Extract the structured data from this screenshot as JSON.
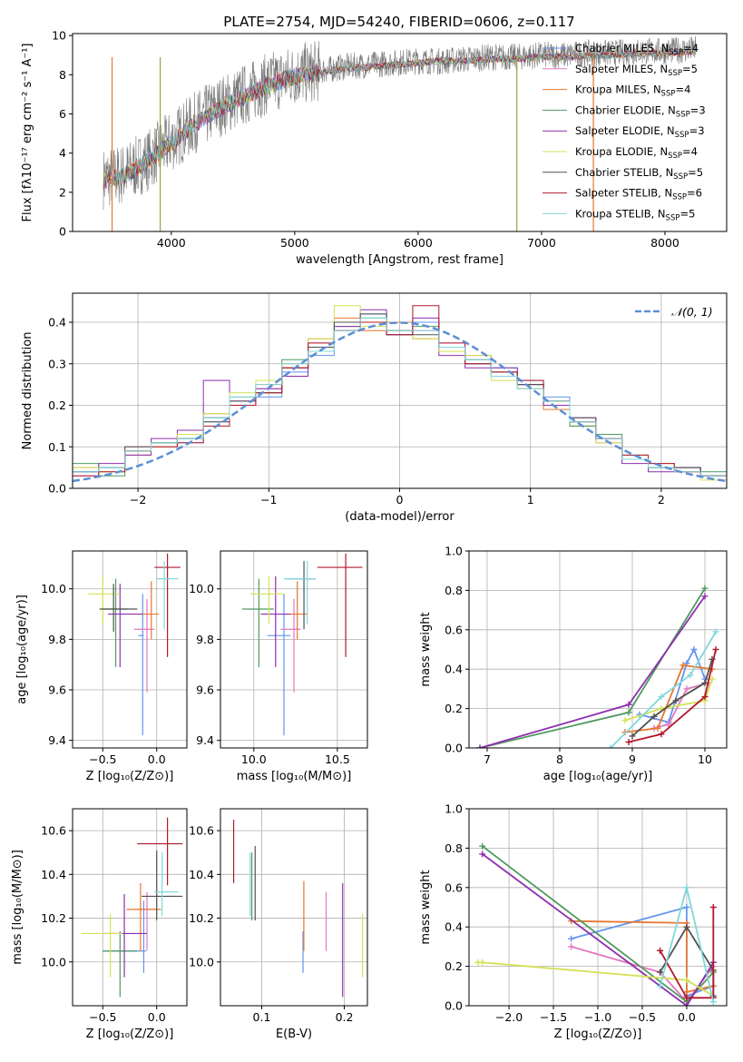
{
  "figure_title": "PLATE=2754, MJD=54240, FIBERID=0606, z=0.117",
  "models": [
    {
      "label": "Chabrier MILES, N",
      "sub": "SSP",
      "tail": "=4",
      "color": "#6495ed"
    },
    {
      "label": "Salpeter MILES, N",
      "sub": "SSP",
      "tail": "=5",
      "color": "#e377c2"
    },
    {
      "label": "Kroupa MILES, N",
      "sub": "SSP",
      "tail": "=4",
      "color": "#e8772e"
    },
    {
      "label": "Chabrier ELODIE, N",
      "sub": "SSP",
      "tail": "=3",
      "color": "#4f9a5f"
    },
    {
      "label": "Salpeter ELODIE, N",
      "sub": "SSP",
      "tail": "=3",
      "color": "#8e2fb0"
    },
    {
      "label": "Kroupa ELODIE, N",
      "sub": "SSP",
      "tail": "=4",
      "color": "#d4e157"
    },
    {
      "label": "Chabrier STELIB, N",
      "sub": "SSP",
      "tail": "=5",
      "color": "#505050"
    },
    {
      "label": "Salpeter STELIB, N",
      "sub": "SSP",
      "tail": "=6",
      "color": "#b2182b"
    },
    {
      "label": "Kroupa STELIB, N",
      "sub": "SSP",
      "tail": "=5",
      "color": "#7fd8dc"
    }
  ],
  "chart_data": [
    {
      "id": "spectrum",
      "type": "line",
      "xlabel": "wavelength [Angstrom, rest frame]",
      "ylabel": "Flux [fλ10⁻¹⁷ erg cm⁻² s⁻¹ A⁻¹]",
      "xlim": [
        3200,
        8500
      ],
      "ylim": [
        0,
        10.1
      ],
      "xticks": [
        4000,
        5000,
        6000,
        7000,
        8000
      ],
      "yticks": [
        0,
        2,
        4,
        6,
        8,
        10
      ],
      "data_x": [
        3450,
        3600,
        3800,
        4000,
        4200,
        4400,
        4600,
        4800,
        5000,
        5200,
        5400,
        5600,
        5800,
        6000,
        6200,
        6400,
        6600,
        6800,
        7000,
        7200,
        7400,
        7600,
        7800,
        8000,
        8250
      ],
      "data_y": [
        2.7,
        2.9,
        3.6,
        4.6,
        5.6,
        6.4,
        7.0,
        7.6,
        8.0,
        8.2,
        8.4,
        8.5,
        8.6,
        8.7,
        8.7,
        8.8,
        8.9,
        8.9,
        9.0,
        9.0,
        9.1,
        9.1,
        9.2,
        9.2,
        9.3
      ],
      "model_y": [
        2.6,
        2.8,
        3.5,
        4.5,
        5.5,
        6.3,
        6.9,
        7.5,
        7.9,
        8.1,
        8.3,
        8.4,
        8.5,
        8.6,
        8.7,
        8.7,
        8.8,
        8.8,
        8.9,
        8.9,
        9.0,
        9.0,
        9.1,
        9.1,
        9.2
      ],
      "legend_loc": "right"
    },
    {
      "id": "residuals",
      "type": "step-histogram",
      "xlabel": "(data-model)/error",
      "ylabel": "Normed distribution",
      "xlim": [
        -2.5,
        2.5
      ],
      "ylim": [
        0,
        0.47
      ],
      "xticks": [
        -2,
        -1,
        0,
        1,
        2
      ],
      "yticks": [
        0.0,
        0.1,
        0.2,
        0.3,
        0.4
      ],
      "bins": [
        -2.5,
        -2.3,
        -2.1,
        -1.9,
        -1.7,
        -1.5,
        -1.3,
        -1.1,
        -0.9,
        -0.7,
        -0.5,
        -0.3,
        -0.1,
        0.1,
        0.3,
        0.5,
        0.7,
        0.9,
        1.1,
        1.3,
        1.5,
        1.7,
        1.9,
        2.1,
        2.3,
        2.5
      ],
      "histograms": [
        [
          0.04,
          0.05,
          0.09,
          0.1,
          0.11,
          0.16,
          0.2,
          0.22,
          0.28,
          0.32,
          0.4,
          0.42,
          0.37,
          0.4,
          0.33,
          0.3,
          0.29,
          0.26,
          0.22,
          0.16,
          0.12,
          0.08,
          0.05,
          0.05,
          0.03
        ],
        [
          0.03,
          0.05,
          0.1,
          0.1,
          0.12,
          0.17,
          0.21,
          0.24,
          0.3,
          0.35,
          0.38,
          0.4,
          0.38,
          0.38,
          0.35,
          0.31,
          0.27,
          0.24,
          0.2,
          0.16,
          0.11,
          0.07,
          0.05,
          0.04,
          0.03
        ],
        [
          0.05,
          0.04,
          0.08,
          0.11,
          0.13,
          0.18,
          0.2,
          0.25,
          0.29,
          0.36,
          0.41,
          0.38,
          0.4,
          0.36,
          0.34,
          0.32,
          0.27,
          0.25,
          0.19,
          0.15,
          0.12,
          0.07,
          0.06,
          0.04,
          0.03
        ],
        [
          0.06,
          0.03,
          0.09,
          0.11,
          0.12,
          0.17,
          0.22,
          0.23,
          0.31,
          0.34,
          0.39,
          0.41,
          0.37,
          0.39,
          0.34,
          0.31,
          0.28,
          0.25,
          0.21,
          0.15,
          0.13,
          0.07,
          0.05,
          0.05,
          0.04
        ],
        [
          0.04,
          0.06,
          0.08,
          0.12,
          0.14,
          0.26,
          0.21,
          0.24,
          0.27,
          0.33,
          0.39,
          0.43,
          0.37,
          0.41,
          0.32,
          0.29,
          0.29,
          0.25,
          0.2,
          0.17,
          0.12,
          0.06,
          0.04,
          0.05,
          0.03
        ],
        [
          0.05,
          0.04,
          0.09,
          0.1,
          0.13,
          0.18,
          0.23,
          0.26,
          0.3,
          0.36,
          0.44,
          0.39,
          0.38,
          0.36,
          0.33,
          0.32,
          0.26,
          0.24,
          0.21,
          0.16,
          0.11,
          0.08,
          0.05,
          0.04,
          0.02
        ],
        [
          0.04,
          0.05,
          0.1,
          0.11,
          0.12,
          0.16,
          0.21,
          0.23,
          0.29,
          0.34,
          0.4,
          0.42,
          0.38,
          0.37,
          0.34,
          0.3,
          0.28,
          0.25,
          0.21,
          0.17,
          0.12,
          0.07,
          0.05,
          0.05,
          0.03
        ],
        [
          0.03,
          0.04,
          0.09,
          0.1,
          0.11,
          0.15,
          0.2,
          0.23,
          0.29,
          0.35,
          0.38,
          0.4,
          0.37,
          0.44,
          0.35,
          0.3,
          0.28,
          0.26,
          0.21,
          0.16,
          0.12,
          0.08,
          0.06,
          0.04,
          0.03
        ],
        [
          0.04,
          0.05,
          0.09,
          0.11,
          0.12,
          0.17,
          0.22,
          0.25,
          0.3,
          0.33,
          0.38,
          0.41,
          0.38,
          0.38,
          0.34,
          0.31,
          0.27,
          0.24,
          0.21,
          0.16,
          0.12,
          0.07,
          0.05,
          0.04,
          0.03
        ]
      ],
      "normal_curve_label": "𝒩(0, 1)",
      "normal_curve_color": "#5b8fd6",
      "legend_loc": "top-right"
    },
    {
      "id": "age-vs-Z",
      "type": "errorbar",
      "xlabel": "Z [log₁₀(Z/Z⊙)]",
      "ylabel": "age  [log₁₀(age/yr)]",
      "xlim": [
        -0.78,
        0.28
      ],
      "ylim": [
        9.37,
        10.15
      ],
      "xticks": [
        -0.5,
        0.0
      ],
      "yticks": [
        9.4,
        9.6,
        9.8,
        10.0
      ],
      "points": [
        {
          "x": -0.13,
          "y": 9.815,
          "xlo": -0.17,
          "xhi": -0.12,
          "ylo": 9.42,
          "yhi": 9.98
        },
        {
          "x": -0.09,
          "y": 9.84,
          "xlo": -0.21,
          "xhi": -0.02,
          "ylo": 9.59,
          "yhi": 9.96
        },
        {
          "x": -0.05,
          "y": 9.9,
          "xlo": -0.21,
          "xhi": 0.02,
          "ylo": 9.8,
          "yhi": 10.03
        },
        {
          "x": -0.38,
          "y": 9.92,
          "xlo": -0.5,
          "xhi": -0.27,
          "ylo": 9.69,
          "yhi": 10.04
        },
        {
          "x": -0.34,
          "y": 9.9,
          "xlo": -0.45,
          "xhi": -0.13,
          "ylo": 9.69,
          "yhi": 10.02
        },
        {
          "x": -0.5,
          "y": 9.98,
          "xlo": -0.64,
          "xhi": -0.34,
          "ylo": 9.86,
          "yhi": 10.05
        },
        {
          "x": -0.4,
          "y": 9.92,
          "xlo": -0.53,
          "xhi": -0.18,
          "ylo": 9.83,
          "yhi": 10.02
        },
        {
          "x": 0.1,
          "y": 10.085,
          "xlo": -0.02,
          "xhi": 0.22,
          "ylo": 9.73,
          "yhi": 10.14
        },
        {
          "x": 0.07,
          "y": 10.04,
          "xlo": 0.0,
          "xhi": 0.2,
          "ylo": 9.84,
          "yhi": 10.11
        }
      ]
    },
    {
      "id": "age-vs-mass",
      "type": "errorbar",
      "xlabel": "mass [log₁₀(M/M⊙)]",
      "ylabel": "",
      "xlim": [
        9.8,
        10.68
      ],
      "ylim": [
        9.37,
        10.15
      ],
      "xticks": [
        10.0,
        10.5
      ],
      "yticks": [
        9.4,
        9.6,
        9.8,
        10.0
      ],
      "points": [
        {
          "x": 10.18,
          "y": 9.815,
          "xlo": 10.08,
          "xhi": 10.22,
          "ylo": 9.42,
          "yhi": 9.98
        },
        {
          "x": 10.24,
          "y": 9.84,
          "xlo": 10.16,
          "xhi": 10.28,
          "ylo": 9.59,
          "yhi": 9.96
        },
        {
          "x": 10.26,
          "y": 9.9,
          "xlo": 10.18,
          "xhi": 10.32,
          "ylo": 9.8,
          "yhi": 10.03
        },
        {
          "x": 10.03,
          "y": 9.92,
          "xlo": 9.93,
          "xhi": 10.12,
          "ylo": 9.69,
          "yhi": 10.04
        },
        {
          "x": 10.13,
          "y": 9.9,
          "xlo": 10.04,
          "xhi": 10.22,
          "ylo": 9.69,
          "yhi": 10.05
        },
        {
          "x": 10.09,
          "y": 9.98,
          "xlo": 9.98,
          "xhi": 10.18,
          "ylo": 9.86,
          "yhi": 10.05
        },
        {
          "x": 10.3,
          "y": 10.04,
          "xlo": 10.2,
          "xhi": 10.37,
          "ylo": 9.84,
          "yhi": 10.11
        },
        {
          "x": 10.55,
          "y": 10.085,
          "xlo": 10.38,
          "xhi": 10.65,
          "ylo": 9.73,
          "yhi": 10.14
        },
        {
          "x": 10.32,
          "y": 10.04,
          "xlo": 10.18,
          "xhi": 10.37,
          "ylo": 9.86,
          "yhi": 10.11
        }
      ]
    },
    {
      "id": "massweight-vs-age",
      "type": "line",
      "xlabel": "age  [log₁₀(age/yr)]",
      "ylabel": "mass weight",
      "xlim": [
        6.75,
        10.3
      ],
      "ylim": [
        0,
        1.0
      ],
      "xticks": [
        7,
        8,
        9,
        10
      ],
      "yticks": [
        0.0,
        0.2,
        0.4,
        0.6,
        0.8,
        1.0
      ],
      "series": [
        {
          "x": [
            9.1,
            9.5,
            9.75,
            9.85,
            10.0
          ],
          "y": [
            0.17,
            0.13,
            0.43,
            0.5,
            0.35
          ]
        },
        {
          "x": [
            9.3,
            9.5,
            9.75,
            10.05
          ],
          "y": [
            0.1,
            0.12,
            0.3,
            0.33
          ]
        },
        {
          "x": [
            8.9,
            9.35,
            9.7,
            10.1
          ],
          "y": [
            0.08,
            0.1,
            0.42,
            0.4
          ]
        },
        {
          "x": [
            6.9,
            8.95,
            10.0
          ],
          "y": [
            0.0,
            0.18,
            0.81
          ]
        },
        {
          "x": [
            6.9,
            8.95,
            10.0
          ],
          "y": [
            0.0,
            0.22,
            0.77
          ]
        },
        {
          "x": [
            8.9,
            9.4,
            10.0,
            10.1
          ],
          "y": [
            0.14,
            0.2,
            0.24,
            0.35
          ]
        },
        {
          "x": [
            9.0,
            9.3,
            9.6,
            10.0,
            10.1
          ],
          "y": [
            0.06,
            0.16,
            0.24,
            0.33,
            0.45
          ]
        },
        {
          "x": [
            8.95,
            9.4,
            10.0,
            10.15
          ],
          "y": [
            0.03,
            0.07,
            0.26,
            0.5
          ]
        },
        {
          "x": [
            8.7,
            9.4,
            9.8,
            10.15
          ],
          "y": [
            0.0,
            0.26,
            0.37,
            0.59
          ]
        }
      ]
    },
    {
      "id": "mass-vs-Z",
      "type": "errorbar",
      "xlabel": "Z [log₁₀(Z/Z⊙)]",
      "ylabel": "mass [log₁₀(M/M⊙)]",
      "xlim": [
        -0.78,
        0.28
      ],
      "ylim": [
        9.8,
        10.7
      ],
      "xticks": [
        -0.5,
        0.0
      ],
      "yticks": [
        10.0,
        10.2,
        10.4,
        10.6
      ],
      "points": [
        {
          "x": -0.12,
          "y": 10.05,
          "xlo": -0.5,
          "xhi": -0.1,
          "ylo": 9.95,
          "yhi": 10.28
        },
        {
          "x": -0.09,
          "y": 10.24,
          "xlo": -0.21,
          "xhi": 0.01,
          "ylo": 10.05,
          "yhi": 10.32
        },
        {
          "x": -0.15,
          "y": 10.24,
          "xlo": -0.28,
          "xhi": 0.04,
          "ylo": 10.05,
          "yhi": 10.36
        },
        {
          "x": -0.34,
          "y": 10.05,
          "xlo": -0.5,
          "xhi": -0.18,
          "ylo": 9.84,
          "yhi": 10.14
        },
        {
          "x": -0.3,
          "y": 10.13,
          "xlo": -0.48,
          "xhi": -0.09,
          "ylo": 9.93,
          "yhi": 10.31
        },
        {
          "x": -0.43,
          "y": 10.13,
          "xlo": -0.7,
          "xhi": -0.32,
          "ylo": 9.93,
          "yhi": 10.22
        },
        {
          "x": 0.0,
          "y": 10.3,
          "xlo": -0.14,
          "xhi": 0.24,
          "ylo": 10.19,
          "yhi": 10.51
        },
        {
          "x": 0.1,
          "y": 10.54,
          "xlo": -0.18,
          "xhi": 0.24,
          "ylo": 10.35,
          "yhi": 10.66
        },
        {
          "x": 0.05,
          "y": 10.32,
          "xlo": -0.02,
          "xhi": 0.2,
          "ylo": 10.21,
          "yhi": 10.5
        }
      ]
    },
    {
      "id": "mass-vs-EBV",
      "type": "errorbar",
      "xlabel": "E(B-V)",
      "ylabel": "",
      "xlim": [
        0.05,
        0.228
      ],
      "ylim": [
        9.8,
        10.7
      ],
      "xticks": [
        0.1,
        0.2
      ],
      "yticks": [
        10.0,
        10.2,
        10.4,
        10.6
      ],
      "points": [
        {
          "x": 0.15,
          "y": 10.05,
          "ylo": 9.95,
          "yhi": 10.14
        },
        {
          "x": 0.178,
          "y": 10.2,
          "ylo": 10.05,
          "yhi": 10.32
        },
        {
          "x": 0.151,
          "y": 10.24,
          "ylo": 10.05,
          "yhi": 10.37
        },
        {
          "x": 0.088,
          "y": 10.3,
          "ylo": 10.19,
          "yhi": 10.5
        },
        {
          "x": 0.198,
          "y": 10.1,
          "ylo": 9.84,
          "yhi": 10.36
        },
        {
          "x": 0.222,
          "y": 10.07,
          "ylo": 9.93,
          "yhi": 10.22
        },
        {
          "x": 0.092,
          "y": 10.32,
          "ylo": 10.19,
          "yhi": 10.53
        },
        {
          "x": 0.066,
          "y": 10.5,
          "ylo": 10.36,
          "yhi": 10.65
        },
        {
          "x": 0.086,
          "y": 10.36,
          "ylo": 10.21,
          "yhi": 10.5
        }
      ]
    },
    {
      "id": "massweight-vs-Z",
      "type": "line",
      "xlabel": "Z [log₁₀(Z/Z⊙)]",
      "ylabel": "mass weight",
      "xlim": [
        -2.45,
        0.45
      ],
      "ylim": [
        0,
        1.0
      ],
      "xticks": [
        -2.0,
        -1.5,
        -1.0,
        -0.5,
        0.0
      ],
      "yticks": [
        0.0,
        0.2,
        0.4,
        0.6,
        0.8,
        1.0
      ],
      "series": [
        {
          "x": [
            -1.3,
            0.0,
            0.0,
            0.3
          ],
          "y": [
            0.34,
            0.5,
            0.05,
            0.1
          ]
        },
        {
          "x": [
            -1.3,
            -0.3,
            0.0,
            0.3
          ],
          "y": [
            0.3,
            0.17,
            0.02,
            0.2
          ]
        },
        {
          "x": [
            -1.3,
            0.0,
            0.0,
            0.3
          ],
          "y": [
            0.43,
            0.42,
            0.07,
            0.1
          ]
        },
        {
          "x": [
            -2.3,
            0.0,
            0.3
          ],
          "y": [
            0.81,
            0.02,
            0.17
          ]
        },
        {
          "x": [
            -2.3,
            0.0,
            0.3
          ],
          "y": [
            0.77,
            0.0,
            0.22
          ]
        },
        {
          "x": [
            -2.35,
            -2.3,
            0.0,
            0.3
          ],
          "y": [
            0.22,
            0.22,
            0.13,
            0.05
          ]
        },
        {
          "x": [
            -0.3,
            0.0,
            0.3,
            0.3
          ],
          "y": [
            0.17,
            0.4,
            0.18,
            0.05
          ]
        },
        {
          "x": [
            -0.3,
            0.0,
            0.3,
            0.3
          ],
          "y": [
            0.28,
            0.04,
            0.04,
            0.5
          ]
        },
        {
          "x": [
            -0.3,
            0.0,
            0.3
          ],
          "y": [
            0.1,
            0.6,
            0.02
          ]
        }
      ]
    }
  ]
}
